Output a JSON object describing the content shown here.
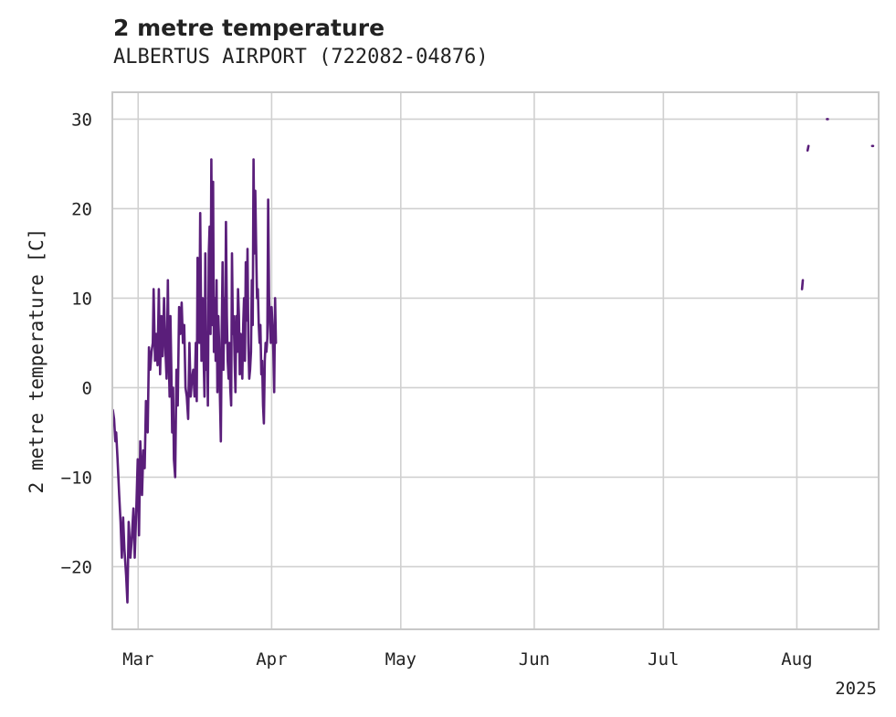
{
  "chart_data": {
    "type": "line",
    "title": "2 metre temperature",
    "subtitle": "ALBERTUS AIRPORT (722082-04876)",
    "ylabel": "2 metre temperature [C]",
    "xlabel": "",
    "year_label": "2025",
    "ylim": [
      -27.0,
      33.0
    ],
    "xlim": [
      -6.0,
      172.0
    ],
    "x_units": "days since 2025-03-01",
    "yticks": [
      -20,
      -10,
      0,
      10,
      20,
      30
    ],
    "ytick_labels": [
      "−20",
      "−10",
      "0",
      "10",
      "20",
      "30"
    ],
    "xticks": [
      0,
      31,
      61,
      92,
      122,
      153
    ],
    "xtick_labels": [
      "Mar",
      "Apr",
      "May",
      "Jun",
      "Jul",
      "Aug"
    ],
    "line_color": "#5a1e7a",
    "grid": true,
    "series": [
      {
        "name": "2 metre temperature",
        "segments": [
          [
            [
              -5.9,
              -2.5
            ],
            [
              -5.6,
              -3.5
            ],
            [
              -5.3,
              -6
            ],
            [
              -5.1,
              -5
            ],
            [
              -4.8,
              -8
            ],
            [
              -4.4,
              -12
            ],
            [
              -4.1,
              -15
            ],
            [
              -3.8,
              -19
            ],
            [
              -3.5,
              -14.5
            ],
            [
              -3.2,
              -18
            ],
            [
              -2.8,
              -21
            ],
            [
              -2.5,
              -24
            ],
            [
              -2.2,
              -15
            ],
            [
              -1.8,
              -19
            ],
            [
              -1.5,
              -17
            ],
            [
              -1.1,
              -13.5
            ],
            [
              -0.8,
              -19
            ],
            [
              -0.4,
              -13
            ],
            [
              -0.1,
              -8
            ],
            [
              0.2,
              -16.5
            ],
            [
              0.5,
              -6
            ],
            [
              0.9,
              -12
            ],
            [
              1.2,
              -7
            ],
            [
              1.5,
              -9
            ],
            [
              1.8,
              -1.5
            ],
            [
              2.2,
              -5
            ],
            [
              2.5,
              4.5
            ],
            [
              2.8,
              2
            ],
            [
              3.1,
              4
            ],
            [
              3.4,
              5
            ],
            [
              3.6,
              11
            ],
            [
              3.9,
              3
            ],
            [
              4.2,
              6
            ],
            [
              4.5,
              2.5
            ],
            [
              4.8,
              11
            ],
            [
              5.1,
              1.5
            ],
            [
              5.4,
              8
            ],
            [
              5.7,
              3.5
            ],
            [
              6,
              10
            ],
            [
              6.3,
              4.5
            ],
            [
              6.6,
              1
            ],
            [
              6.9,
              12
            ],
            [
              7.1,
              3.5
            ],
            [
              7.3,
              -1
            ],
            [
              7.5,
              8
            ],
            [
              7.7,
              2
            ],
            [
              7.9,
              -5
            ],
            [
              8.1,
              0
            ],
            [
              8.3,
              -8
            ],
            [
              8.6,
              -10
            ],
            [
              8.9,
              2
            ],
            [
              9.2,
              -2
            ],
            [
              9.5,
              9
            ],
            [
              9.8,
              6
            ],
            [
              10.1,
              9.5
            ],
            [
              10.4,
              5
            ],
            [
              10.7,
              7
            ],
            [
              11,
              0
            ],
            [
              11.3,
              -1
            ],
            [
              11.6,
              -3.5
            ],
            [
              11.9,
              5
            ],
            [
              12.2,
              -1
            ],
            [
              12.5,
              1
            ],
            [
              12.8,
              2
            ],
            [
              13.1,
              -1
            ],
            [
              13.4,
              5
            ],
            [
              13.6,
              -1.5
            ],
            [
              13.8,
              14.5
            ],
            [
              14,
              7
            ],
            [
              14.2,
              5
            ],
            [
              14.4,
              19.5
            ],
            [
              14.7,
              3
            ],
            [
              15,
              10
            ],
            [
              15.2,
              3.5
            ],
            [
              15.4,
              -1
            ],
            [
              15.6,
              15
            ],
            [
              15.8,
              2
            ],
            [
              16,
              6
            ],
            [
              16.2,
              -2
            ],
            [
              16.4,
              15
            ],
            [
              16.6,
              18
            ],
            [
              16.8,
              6
            ],
            [
              17,
              25.5
            ],
            [
              17.2,
              7
            ],
            [
              17.4,
              23
            ],
            [
              17.6,
              4
            ],
            [
              17.8,
              10
            ],
            [
              18,
              3
            ],
            [
              18.2,
              12
            ],
            [
              18.4,
              -0.5
            ],
            [
              18.6,
              8
            ],
            [
              18.8,
              5
            ],
            [
              19,
              -1
            ],
            [
              19.2,
              -6
            ],
            [
              19.4,
              5.5
            ],
            [
              19.6,
              14
            ],
            [
              19.8,
              2
            ],
            [
              20,
              10
            ],
            [
              20.2,
              5
            ],
            [
              20.4,
              18.5
            ],
            [
              20.6,
              8
            ],
            [
              20.8,
              3
            ],
            [
              21,
              1
            ],
            [
              21.2,
              5
            ],
            [
              21.4,
              0
            ],
            [
              21.6,
              -2
            ],
            [
              21.8,
              15
            ],
            [
              22,
              6
            ],
            [
              22.2,
              8
            ],
            [
              22.4,
              3
            ],
            [
              22.6,
              -0.5
            ],
            [
              22.8,
              8
            ],
            [
              23,
              4
            ],
            [
              23.2,
              11
            ],
            [
              23.4,
              8
            ],
            [
              23.6,
              1.5
            ],
            [
              23.8,
              6
            ],
            [
              24,
              3
            ],
            [
              24.2,
              1
            ],
            [
              24.4,
              7
            ],
            [
              24.6,
              10
            ],
            [
              24.8,
              3
            ],
            [
              25,
              14
            ],
            [
              25.2,
              7.5
            ],
            [
              25.4,
              15.5
            ],
            [
              25.6,
              5
            ],
            [
              25.8,
              1
            ],
            [
              26,
              2
            ],
            [
              26.2,
              4
            ],
            [
              26.4,
              12
            ],
            [
              26.6,
              7
            ],
            [
              26.8,
              25.5
            ],
            [
              27,
              15
            ],
            [
              27.2,
              22
            ],
            [
              27.4,
              16
            ],
            [
              27.6,
              10
            ],
            [
              27.8,
              11
            ],
            [
              28,
              7
            ],
            [
              28.2,
              5
            ],
            [
              28.4,
              7
            ],
            [
              28.6,
              1.5
            ],
            [
              28.8,
              3
            ],
            [
              29,
              -2
            ],
            [
              29.2,
              -4
            ],
            [
              29.4,
              3
            ],
            [
              29.6,
              5
            ],
            [
              29.8,
              4
            ],
            [
              30,
              5.5
            ],
            [
              30.2,
              21
            ],
            [
              30.4,
              10
            ],
            [
              30.6,
              7
            ],
            [
              30.8,
              5
            ],
            [
              31,
              9
            ],
            [
              31.2,
              7
            ],
            [
              31.4,
              4
            ],
            [
              31.6,
              -0.5
            ],
            [
              31.8,
              10
            ],
            [
              32,
              5
            ]
          ],
          [
            [
              154.2,
              11
            ],
            [
              154.4,
              12
            ]
          ],
          [
            [
              155.5,
              26.5
            ],
            [
              155.7,
              27
            ]
          ],
          [
            [
              160,
              30
            ],
            [
              160.2,
              30
            ]
          ],
          [
            [
              170.5,
              27
            ],
            [
              170.7,
              27
            ]
          ]
        ]
      }
    ]
  }
}
